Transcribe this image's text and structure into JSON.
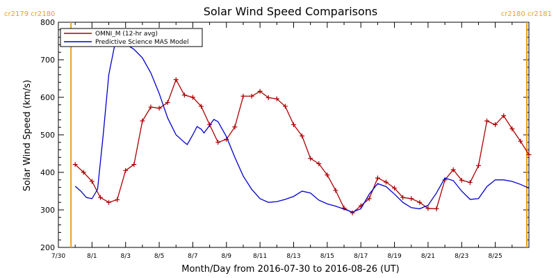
{
  "chart_data": {
    "type": "line",
    "title": "Solar Wind Speed Comparisons",
    "xlabel": "Month/Day from 2016-07-30 to 2016-08-26 (UT)",
    "ylabel": "Solar Wind Speed (km/s)",
    "xlim": [
      "2016-07-30",
      "2016-08-27"
    ],
    "ylim": [
      200,
      800
    ],
    "yticks": [
      200,
      300,
      400,
      500,
      600,
      700,
      800
    ],
    "xticks": [
      {
        "date": "2016-07-30",
        "label": "7/30"
      },
      {
        "date": "2016-08-01",
        "label": "8/1"
      },
      {
        "date": "2016-08-03",
        "label": "8/3"
      },
      {
        "date": "2016-08-05",
        "label": "8/5"
      },
      {
        "date": "2016-08-07",
        "label": "8/7"
      },
      {
        "date": "2016-08-09",
        "label": "8/9"
      },
      {
        "date": "2016-08-11",
        "label": "8/11"
      },
      {
        "date": "2016-08-13",
        "label": "8/13"
      },
      {
        "date": "2016-08-15",
        "label": "8/15"
      },
      {
        "date": "2016-08-17",
        "label": "8/17"
      },
      {
        "date": "2016-08-19",
        "label": "8/19"
      },
      {
        "date": "2016-08-21",
        "label": "8/21"
      },
      {
        "date": "2016-08-23",
        "label": "8/23"
      },
      {
        "date": "2016-08-25",
        "label": "8/25"
      }
    ],
    "legend_position": "top-left",
    "carrington_labels": {
      "left": "cr2179 cr2180",
      "right": "cr2180 cr2181"
    },
    "carrington_boundaries": [
      "2016-07-30T18:00",
      "2016-08-26T21:00"
    ],
    "series": [
      {
        "name": "OMNI_M (12-hr avg)",
        "color": "#aa0000",
        "markers": true,
        "points": [
          [
            "2016-07-31T00:00",
            421
          ],
          [
            "2016-07-31T12:00",
            400
          ],
          [
            "2016-08-01T00:00",
            376
          ],
          [
            "2016-08-01T12:00",
            333
          ],
          [
            "2016-08-02T00:00",
            320
          ],
          [
            "2016-08-02T12:00",
            327
          ],
          [
            "2016-08-03T00:00",
            405
          ],
          [
            "2016-08-03T12:00",
            421
          ],
          [
            "2016-08-04T00:00",
            537
          ],
          [
            "2016-08-04T12:00",
            574
          ],
          [
            "2016-08-05T00:00",
            571
          ],
          [
            "2016-08-05T12:00",
            586
          ],
          [
            "2016-08-06T00:00",
            647
          ],
          [
            "2016-08-06T12:00",
            606
          ],
          [
            "2016-08-07T00:00",
            600
          ],
          [
            "2016-08-07T12:00",
            576
          ],
          [
            "2016-08-08T00:00",
            527
          ],
          [
            "2016-08-08T12:00",
            480
          ],
          [
            "2016-08-09T00:00",
            488
          ],
          [
            "2016-08-09T12:00",
            521
          ],
          [
            "2016-08-10T00:00",
            603
          ],
          [
            "2016-08-10T12:00",
            603
          ],
          [
            "2016-08-11T00:00",
            616
          ],
          [
            "2016-08-11T12:00",
            599
          ],
          [
            "2016-08-12T00:00",
            596
          ],
          [
            "2016-08-12T12:00",
            576
          ],
          [
            "2016-08-13T00:00",
            527
          ],
          [
            "2016-08-13T12:00",
            497
          ],
          [
            "2016-08-14T00:00",
            437
          ],
          [
            "2016-08-14T12:00",
            423
          ],
          [
            "2016-08-15T00:00",
            393
          ],
          [
            "2016-08-15T12:00",
            352
          ],
          [
            "2016-08-16T00:00",
            305
          ],
          [
            "2016-08-16T12:00",
            292
          ],
          [
            "2016-08-17T00:00",
            311
          ],
          [
            "2016-08-17T12:00",
            330
          ],
          [
            "2016-08-18T00:00",
            385
          ],
          [
            "2016-08-18T12:00",
            374
          ],
          [
            "2016-08-19T00:00",
            358
          ],
          [
            "2016-08-19T12:00",
            333
          ],
          [
            "2016-08-20T00:00",
            330
          ],
          [
            "2016-08-20T12:00",
            320
          ],
          [
            "2016-08-21T00:00",
            304
          ],
          [
            "2016-08-21T12:00",
            303
          ],
          [
            "2016-08-22T00:00",
            380
          ],
          [
            "2016-08-22T12:00",
            407
          ],
          [
            "2016-08-23T00:00",
            379
          ],
          [
            "2016-08-23T12:00",
            373
          ],
          [
            "2016-08-24T00:00",
            418
          ],
          [
            "2016-08-24T12:00",
            537
          ],
          [
            "2016-08-25T00:00",
            527
          ],
          [
            "2016-08-25T12:00",
            551
          ],
          [
            "2016-08-26T00:00",
            516
          ],
          [
            "2016-08-26T12:00",
            483
          ],
          [
            "2016-08-27T00:00",
            447
          ]
        ]
      },
      {
        "name": "Predictive Science MAS Model",
        "color": "#0000cc",
        "markers": false,
        "points": [
          [
            "2016-07-31T00:00",
            363
          ],
          [
            "2016-07-31T08:00",
            350
          ],
          [
            "2016-07-31T16:00",
            333
          ],
          [
            "2016-08-01T00:00",
            330
          ],
          [
            "2016-08-01T08:00",
            355
          ],
          [
            "2016-08-01T16:00",
            500
          ],
          [
            "2016-08-02T00:00",
            660
          ],
          [
            "2016-08-02T08:00",
            735
          ],
          [
            "2016-08-02T16:00",
            745
          ],
          [
            "2016-08-03T00:00",
            742
          ],
          [
            "2016-08-03T12:00",
            728
          ],
          [
            "2016-08-04T00:00",
            705
          ],
          [
            "2016-08-04T12:00",
            665
          ],
          [
            "2016-08-05T00:00",
            610
          ],
          [
            "2016-08-05T12:00",
            545
          ],
          [
            "2016-08-06T00:00",
            500
          ],
          [
            "2016-08-06T12:00",
            480
          ],
          [
            "2016-08-06T16:00",
            474
          ],
          [
            "2016-08-07T00:00",
            500
          ],
          [
            "2016-08-07T06:00",
            522
          ],
          [
            "2016-08-07T12:00",
            515
          ],
          [
            "2016-08-07T16:00",
            505
          ],
          [
            "2016-08-08T00:00",
            525
          ],
          [
            "2016-08-08T06:00",
            541
          ],
          [
            "2016-08-08T12:00",
            535
          ],
          [
            "2016-08-09T00:00",
            495
          ],
          [
            "2016-08-09T12:00",
            440
          ],
          [
            "2016-08-10T00:00",
            390
          ],
          [
            "2016-08-10T12:00",
            355
          ],
          [
            "2016-08-11T00:00",
            330
          ],
          [
            "2016-08-11T12:00",
            320
          ],
          [
            "2016-08-12T00:00",
            322
          ],
          [
            "2016-08-12T12:00",
            328
          ],
          [
            "2016-08-13T00:00",
            336
          ],
          [
            "2016-08-13T12:00",
            350
          ],
          [
            "2016-08-14T00:00",
            345
          ],
          [
            "2016-08-14T12:00",
            326
          ],
          [
            "2016-08-15T00:00",
            316
          ],
          [
            "2016-08-15T12:00",
            310
          ],
          [
            "2016-08-16T00:00",
            302
          ],
          [
            "2016-08-16T12:00",
            294
          ],
          [
            "2016-08-17T00:00",
            303
          ],
          [
            "2016-08-17T12:00",
            342
          ],
          [
            "2016-08-18T00:00",
            370
          ],
          [
            "2016-08-18T12:00",
            362
          ],
          [
            "2016-08-19T00:00",
            342
          ],
          [
            "2016-08-19T12:00",
            320
          ],
          [
            "2016-08-20T00:00",
            306
          ],
          [
            "2016-08-20T12:00",
            303
          ],
          [
            "2016-08-21T00:00",
            312
          ],
          [
            "2016-08-21T12:00",
            345
          ],
          [
            "2016-08-22T00:00",
            385
          ],
          [
            "2016-08-22T12:00",
            378
          ],
          [
            "2016-08-23T00:00",
            350
          ],
          [
            "2016-08-23T12:00",
            328
          ],
          [
            "2016-08-24T00:00",
            330
          ],
          [
            "2016-08-24T12:00",
            362
          ],
          [
            "2016-08-25T00:00",
            380
          ],
          [
            "2016-08-25T12:00",
            380
          ],
          [
            "2016-08-26T00:00",
            376
          ],
          [
            "2016-08-26T12:00",
            368
          ],
          [
            "2016-08-27T00:00",
            358
          ]
        ]
      }
    ]
  }
}
